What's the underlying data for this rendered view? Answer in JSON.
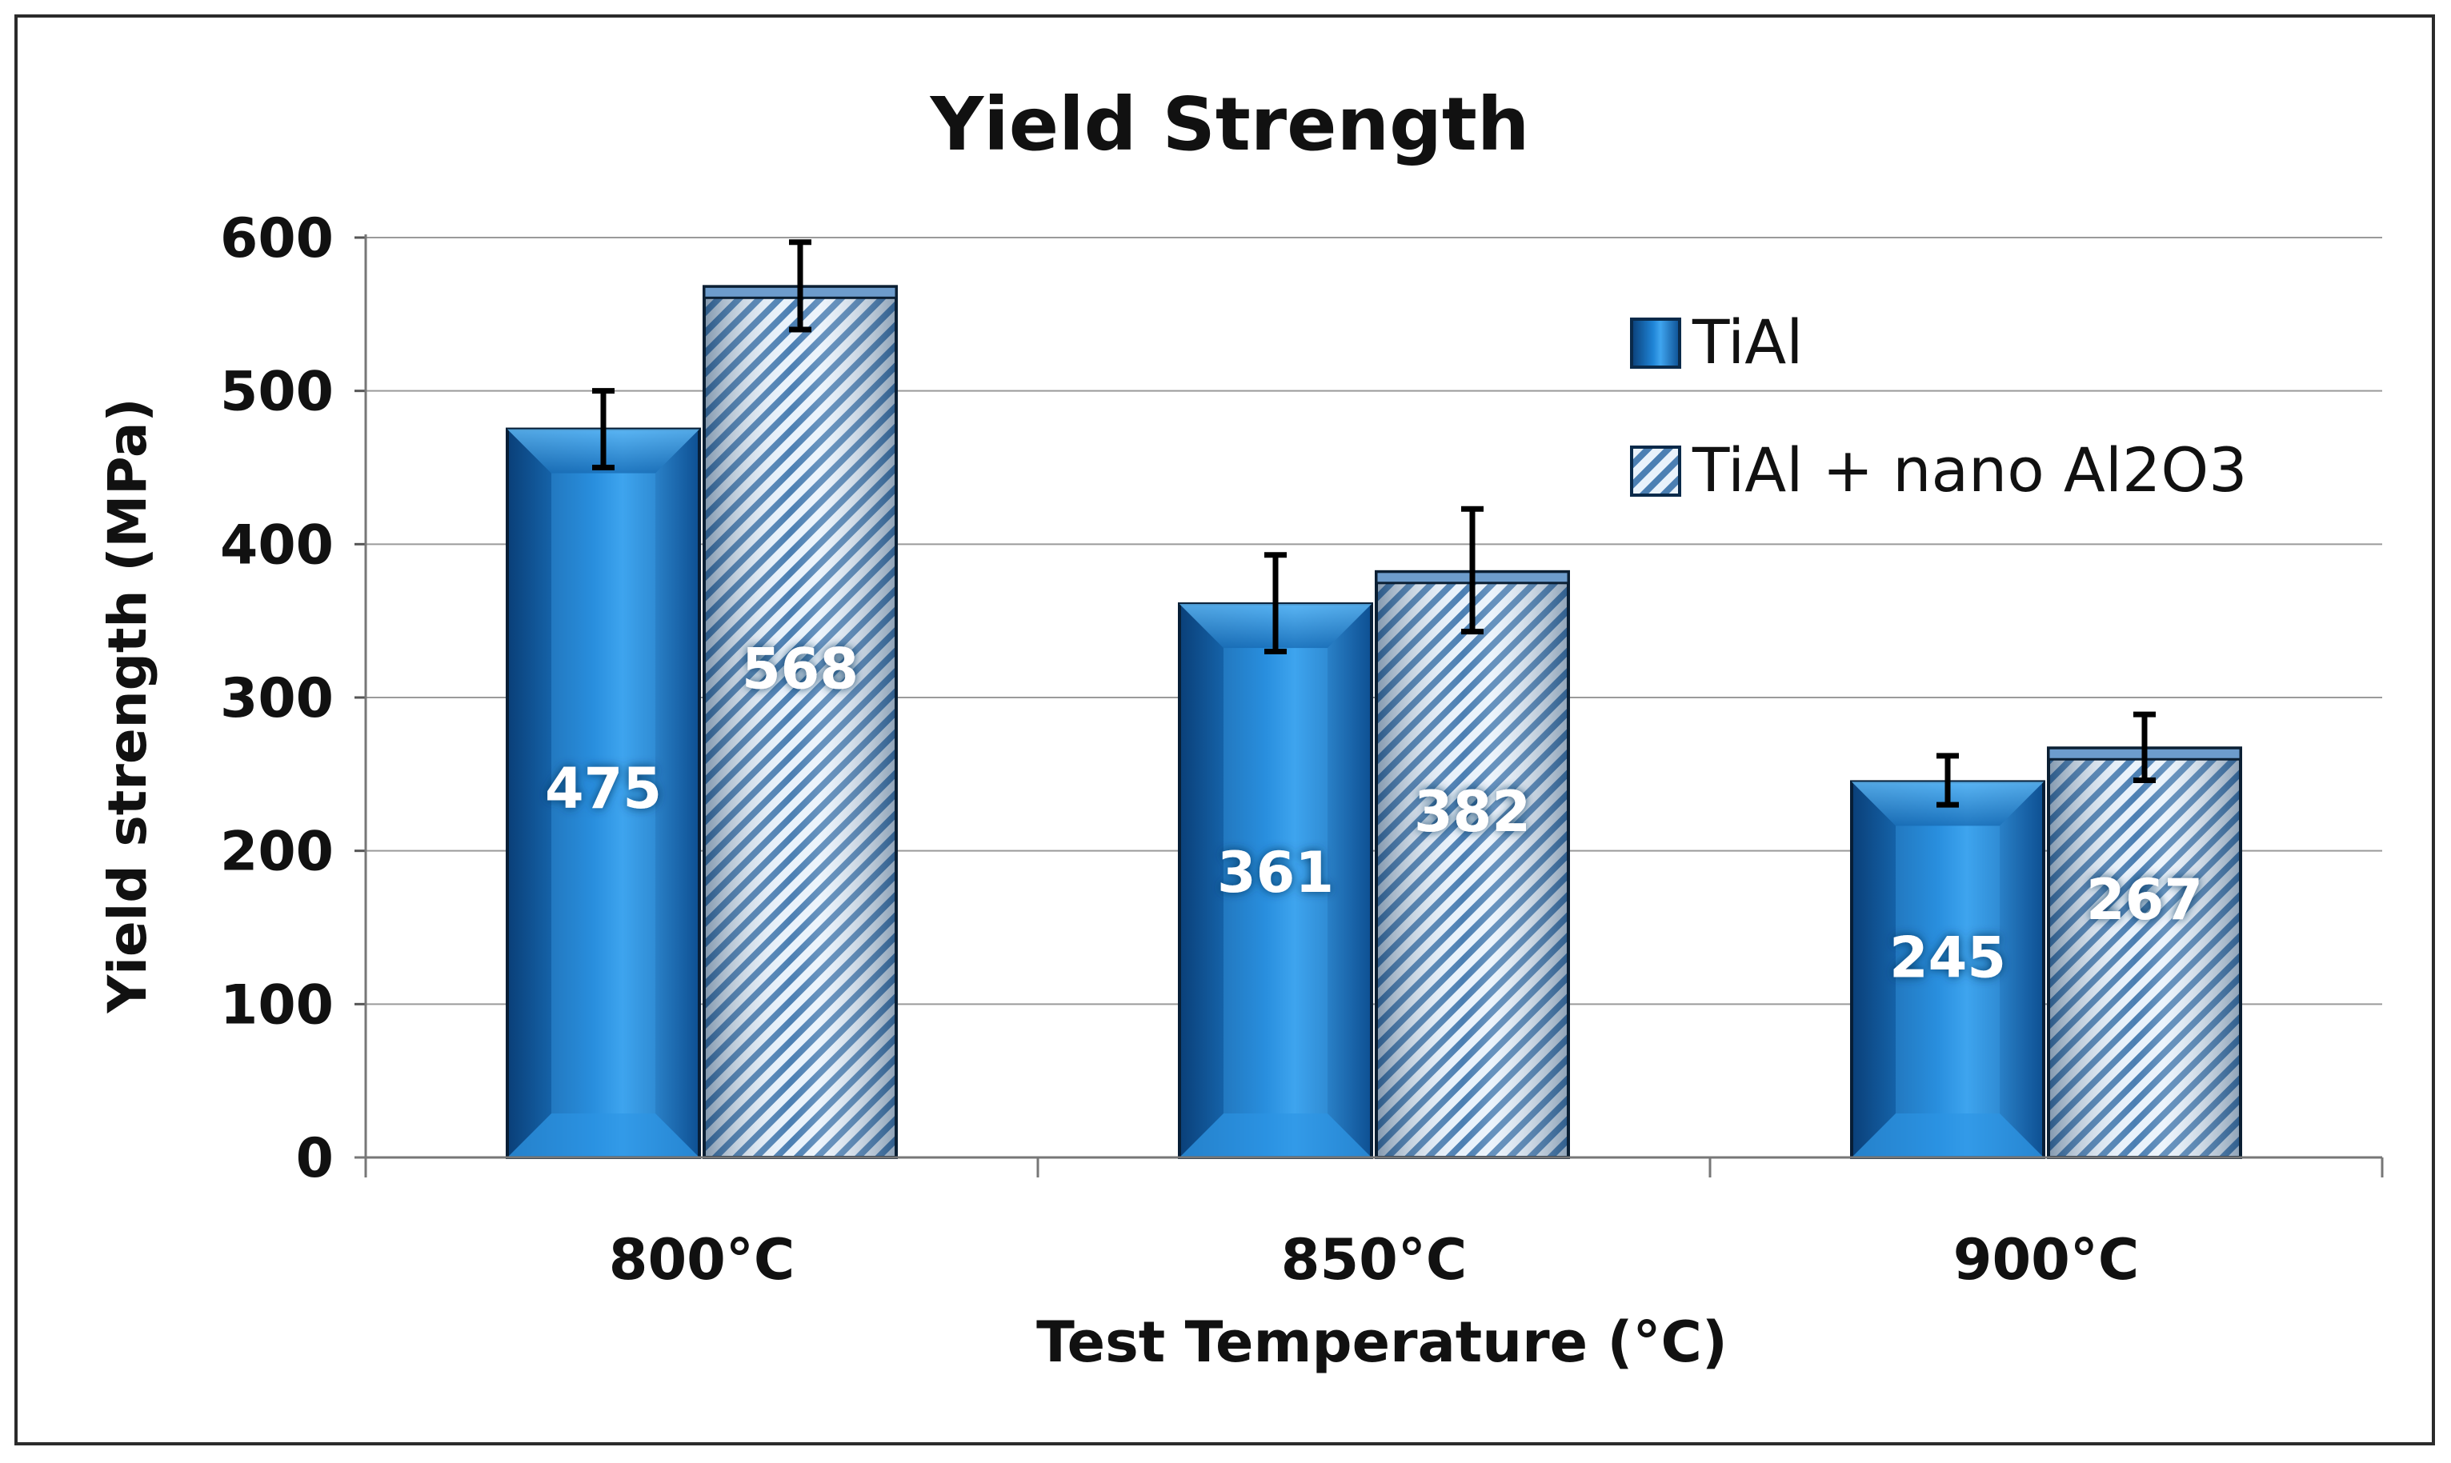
{
  "chart_data": {
    "type": "bar",
    "title": "Yield Strength",
    "xlabel": "Test Temperature (°C)",
    "ylabel": "Yield strength (MPa)",
    "categories": [
      "800°C",
      "850°C",
      "900°C"
    ],
    "ylim": [
      0,
      600
    ],
    "yticks": [
      "0",
      "100",
      "200",
      "300",
      "400",
      "500",
      "600"
    ],
    "grid": true,
    "legend_position": "top-right",
    "series": [
      {
        "name": "TiAl",
        "values": [
          475,
          361,
          245
        ],
        "labels": [
          "475",
          "361",
          "245"
        ],
        "error_low": [
          450,
          330,
          230
        ],
        "error_high": [
          500,
          393,
          262
        ],
        "color": "#1f7fcf",
        "style": "solid-bevel"
      },
      {
        "name": "TiAl + nano Al2O3",
        "values": [
          568,
          382,
          267
        ],
        "labels": [
          "568",
          "382",
          "267"
        ],
        "error_low": [
          540,
          343,
          246
        ],
        "error_high": [
          597,
          423,
          289
        ],
        "color": "#9cc3e6",
        "style": "hatched"
      }
    ]
  }
}
